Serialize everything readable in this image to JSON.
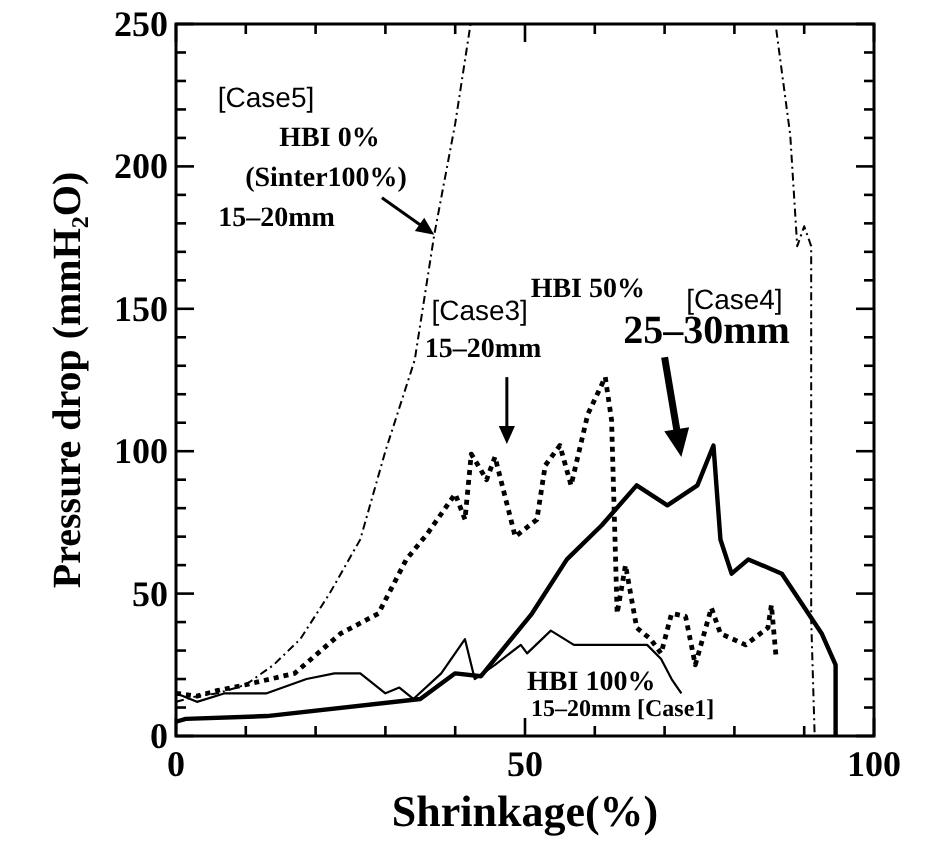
{
  "chart_data": {
    "type": "line",
    "xlabel": "Shrinkage(%)",
    "ylabel": "Pressure drop (mmH₂O)",
    "xlim": [
      0,
      100
    ],
    "ylim": [
      0,
      250
    ],
    "xticks": [
      0,
      {
        "value": 10,
        "label": null
      },
      {
        "value": 20,
        "label": null
      },
      {
        "value": 30,
        "label": null
      },
      {
        "value": 40,
        "label": null
      },
      50,
      {
        "value": 60,
        "label": null
      },
      {
        "value": 70,
        "label": null
      },
      {
        "value": 80,
        "label": null
      },
      {
        "value": 90,
        "label": null
      },
      100
    ],
    "yticks": [
      0,
      {
        "value": 10,
        "label": null
      },
      {
        "value": 20,
        "label": null
      },
      {
        "value": 30,
        "label": null
      },
      {
        "value": 40,
        "label": null
      },
      50,
      {
        "value": 60,
        "label": null
      },
      {
        "value": 70,
        "label": null
      },
      {
        "value": 80,
        "label": null
      },
      {
        "value": 90,
        "label": null
      },
      100,
      {
        "value": 110,
        "label": null
      },
      {
        "value": 120,
        "label": null
      },
      {
        "value": 130,
        "label": null
      },
      {
        "value": 140,
        "label": null
      },
      150,
      {
        "value": 160,
        "label": null
      },
      {
        "value": 170,
        "label": null
      },
      {
        "value": 180,
        "label": null
      },
      {
        "value": 190,
        "label": null
      },
      200,
      {
        "value": 210,
        "label": null
      },
      {
        "value": 220,
        "label": null
      },
      {
        "value": 230,
        "label": null
      },
      {
        "value": 240,
        "label": null
      },
      250
    ],
    "grid": false,
    "marker": "none",
    "series": [
      {
        "color": "#000000",
        "line_style": "dotted",
        "x": [
          0,
          3,
          6,
          10,
          14,
          17.8,
          22,
          26.4,
          30,
          34.2,
          37,
          40,
          42.2,
          null,
          86,
          88,
          89,
          90,
          91,
          91,
          91.5
        ],
        "values": [
          12,
          14,
          15,
          18,
          25,
          34,
          50,
          69,
          100,
          132,
          176,
          215,
          250,
          null,
          248,
          211,
          172,
          179,
          172,
          41,
          0
        ]
      },
      {
        "color": "#000000",
        "line_style": "dotted",
        "x": [
          0,
          3,
          6,
          10,
          17,
          23.6,
          29,
          33,
          36,
          40,
          41.4,
          42.3,
          44.5,
          45.7,
          48.6,
          51.7,
          52.9,
          55,
          56.6,
          59,
          61.5,
          62.4,
          63.2,
          64.4,
          66,
          68,
          69.5,
          71,
          73,
          74.4,
          76.7,
          78,
          81.6,
          84.8,
          85.3,
          86
        ],
        "values": [
          15,
          14,
          16,
          18,
          22,
          36,
          43,
          62,
          71,
          85,
          76,
          99,
          90,
          98,
          70,
          76,
          95,
          102,
          88,
          113,
          126,
          111,
          43,
          60,
          38,
          34,
          29,
          43,
          42,
          25,
          45,
          36,
          32,
          38,
          46,
          27
        ]
      },
      {
        "color": "#000000",
        "line_style": "solid",
        "x": [
          0,
          1.4,
          13,
          35,
          40,
          43.7,
          51,
          56,
          61,
          66,
          70.4,
          74.7,
          77,
          78,
          79.6,
          82,
          86.8,
          92.5,
          94.5,
          94.5
        ],
        "values": [
          5,
          6,
          7,
          13,
          22,
          21,
          43,
          62,
          74,
          88,
          81,
          88,
          102,
          69,
          57,
          62,
          57,
          36,
          25,
          0
        ]
      },
      {
        "color": "#000000",
        "line_style": "solid",
        "x": [
          0,
          3,
          7,
          13,
          18.7,
          22.7,
          26.4,
          30,
          32,
          34,
          38,
          41.4,
          42.8,
          45.7,
          49.4,
          50.3,
          53.7,
          57,
          67.5,
          69.5,
          71,
          72.4
        ],
        "values": [
          15,
          12,
          15,
          15,
          20,
          22,
          22,
          15,
          17,
          13,
          22,
          34,
          20,
          25,
          32,
          29,
          37,
          32,
          32,
          27,
          20,
          15
        ]
      }
    ],
    "annotations": [
      "[Case5]",
      "HBI 0%",
      "(Sinter100%)",
      "15–20mm",
      "HBI 50%",
      "[Case3]",
      "15–20mm",
      "[Case4]",
      "25–30mm",
      "HBI 100%",
      "15–20mm [Case1]"
    ]
  }
}
